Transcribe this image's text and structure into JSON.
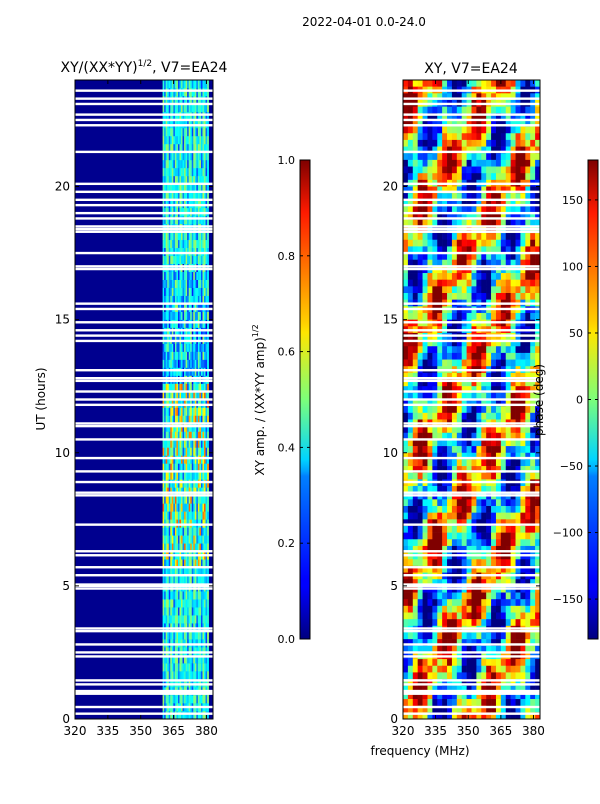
{
  "figure": {
    "suptitle": "2022-04-01 0.0-24.0"
  },
  "chart_data": [
    {
      "type": "heatmap",
      "title": "XY/(XX*YY)^{1/2}, V7=EA24",
      "title_base": "XY/(XX*YY)",
      "title_exponent": "1/2",
      "title_suffix": ", V7=EA24",
      "xlabel": "",
      "ylabel": "UT (hours)",
      "xlim": [
        320,
        383
      ],
      "ylim": [
        0,
        24
      ],
      "xticks": [
        320,
        335,
        350,
        365,
        380
      ],
      "yticks": [
        0,
        5,
        10,
        15,
        20
      ],
      "colorbar": {
        "label": "XY amp. / (XX*YY amp)^{1/2}",
        "label_base": "XY amp. / (XX*YY amp)",
        "label_exponent": "1/2",
        "colormap": "jet",
        "range": [
          0.0,
          1.0
        ],
        "ticks": [
          "0.0",
          "0.2",
          "0.4",
          "0.6",
          "0.8",
          "1.0"
        ]
      },
      "bright_band_mhz": [
        360,
        381
      ]
    },
    {
      "type": "heatmap",
      "title": "XY, V7=EA24",
      "xlabel": "frequency (MHz)",
      "ylabel": "",
      "xlim": [
        320,
        383
      ],
      "ylim": [
        0,
        24
      ],
      "xticks": [
        320,
        335,
        350,
        365,
        380
      ],
      "yticks": [
        0,
        5,
        10,
        15,
        20
      ],
      "colorbar": {
        "label": "phase (deg)",
        "colormap": "jet",
        "range": [
          -180,
          180
        ],
        "ticks": [
          "−150",
          "−100",
          "−50",
          "0",
          "50",
          "100",
          "150"
        ]
      }
    }
  ],
  "gaps_ut_hours": [
    0.2,
    0.45,
    0.95,
    1.0,
    1.05,
    1.3,
    1.45,
    2.35,
    2.5,
    2.8,
    3.3,
    3.4,
    4.9,
    5.0,
    5.05,
    5.4,
    5.7,
    6.15,
    6.3,
    7.3,
    8.4,
    8.5,
    8.9,
    9.3,
    9.8,
    10.5,
    11.0,
    11.1,
    11.8,
    12.0,
    12.3,
    12.7,
    12.8,
    13.1,
    14.2,
    14.4,
    14.6,
    14.9,
    15.4,
    15.6,
    16.9,
    17.0,
    17.5,
    18.3,
    18.4,
    18.5,
    18.8,
    19.0,
    19.3,
    19.5,
    19.8,
    20.1,
    21.3,
    22.3,
    22.5,
    22.7,
    23.1,
    23.3,
    23.6
  ]
}
